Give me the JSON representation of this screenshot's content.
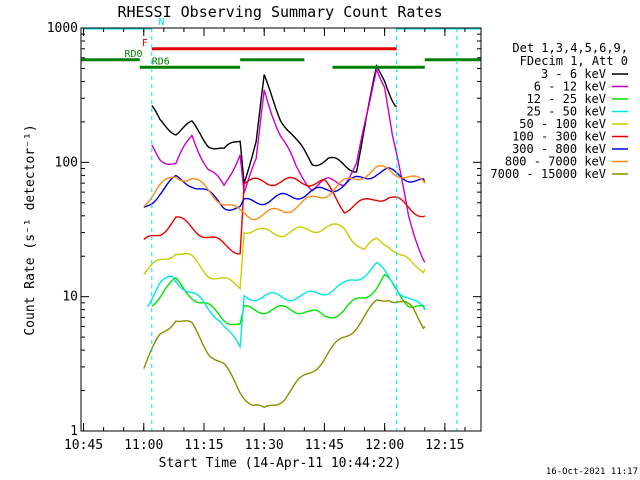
{
  "chart_data": {
    "type": "line",
    "title": "RHESSI Observing Summary Count Rates",
    "xlabel": "Start Time (14-Apr-11 10:44:22)",
    "ylabel": "Count Rate (s⁻¹ detector⁻¹)",
    "y_scale": "log",
    "ylim": [
      1,
      1000
    ],
    "xlim": [
      "10:44:22",
      "12:24:00"
    ],
    "x_ticks": [
      "10:45",
      "11:00",
      "11:15",
      "11:30",
      "11:45",
      "12:00",
      "12:15"
    ],
    "y_ticks": [
      "1",
      "10",
      "100",
      "1000"
    ],
    "legend_title": [
      "Det 1,3,4,5,6,9,",
      "FDecim 1, Att 0"
    ],
    "legend_position": "right",
    "timestamp": "16-Oct-2021 11:17",
    "series": [
      {
        "name": "3 - 6 keV",
        "color": "#000000",
        "x": [
          "11:02",
          "11:04",
          "11:08",
          "11:12",
          "11:16",
          "11:20",
          "11:24",
          "11:25",
          "11:28",
          "11:30",
          "11:34",
          "11:38",
          "11:42",
          "11:46",
          "11:50",
          "11:53",
          "11:56",
          "11:58",
          "12:00",
          "12:02",
          "12:03"
        ],
        "y": [
          250,
          200,
          170,
          190,
          140,
          120,
          150,
          75,
          140,
          420,
          220,
          140,
          100,
          105,
          95,
          90,
          250,
          500,
          420,
          300,
          260
        ]
      },
      {
        "name": "6 - 12 keV",
        "color": "#cc00cc",
        "x": [
          "11:02",
          "11:04",
          "11:08",
          "11:12",
          "11:16",
          "11:20",
          "11:24",
          "11:25",
          "11:28",
          "11:30",
          "11:34",
          "11:38",
          "11:42",
          "11:46",
          "11:50",
          "11:53",
          "11:56",
          "11:58",
          "12:00",
          "12:02",
          "12:06",
          "12:10"
        ],
        "y": [
          130,
          110,
          95,
          160,
          90,
          65,
          120,
          60,
          100,
          350,
          160,
          90,
          65,
          72,
          72,
          95,
          250,
          520,
          380,
          150,
          40,
          18
        ]
      },
      {
        "name": "12 - 25 keV",
        "color": "#00e600",
        "x": [
          "11:02",
          "11:05",
          "11:08",
          "11:11",
          "11:14",
          "11:17",
          "11:20",
          "11:24",
          "11:25",
          "11:30",
          "11:35",
          "11:40",
          "11:45",
          "11:50",
          "11:55",
          "11:58",
          "12:00",
          "12:03",
          "12:06",
          "12:10"
        ],
        "y": [
          9,
          11,
          13,
          11,
          9,
          8,
          7,
          6,
          8,
          8,
          8,
          8,
          7,
          8,
          10,
          12,
          14,
          11,
          9,
          8
        ]
      },
      {
        "name": "25 - 50 keV",
        "color": "#00e6e6",
        "x": [
          "11:01",
          "11:04",
          "11:07",
          "11:10",
          "11:13",
          "11:16",
          "11:19",
          "11:22",
          "11:24",
          "11:25",
          "11:30",
          "11:35",
          "11:40",
          "11:45",
          "11:50",
          "11:55",
          "11:58",
          "12:01",
          "12:04",
          "12:07",
          "12:10"
        ],
        "y": [
          9,
          12,
          14,
          12,
          10,
          8,
          7,
          5,
          4,
          10,
          10,
          10,
          10,
          11,
          12,
          15,
          17,
          14,
          11,
          9,
          8
        ]
      },
      {
        "name": "50 - 100 keV",
        "color": "#cccc00",
        "x": [
          "11:00",
          "11:04",
          "11:08",
          "11:12",
          "11:16",
          "11:20",
          "11:24",
          "11:25",
          "11:30",
          "11:35",
          "11:40",
          "11:45",
          "11:50",
          "11:55",
          "11:58",
          "12:01",
          "12:04",
          "12:07",
          "12:10"
        ],
        "y": [
          15,
          18,
          22,
          19,
          15,
          13,
          12,
          32,
          30,
          30,
          31,
          33,
          32,
          22,
          26,
          25,
          20,
          17,
          16
        ]
      },
      {
        "name": "100 - 300 keV",
        "color": "#e60000",
        "x": [
          "11:00",
          "11:04",
          "11:08",
          "11:12",
          "11:16",
          "11:20",
          "11:24",
          "11:25",
          "11:30",
          "11:35",
          "11:40",
          "11:45",
          "11:50",
          "11:55",
          "11:58",
          "12:01",
          "12:04",
          "12:07",
          "12:10"
        ],
        "y": [
          25,
          30,
          38,
          33,
          28,
          24,
          22,
          70,
          72,
          72,
          72,
          70,
          45,
          50,
          55,
          55,
          50,
          45,
          40
        ]
      },
      {
        "name": "300 - 800 keV",
        "color": "#0000e6",
        "x": [
          "11:00",
          "11:04",
          "11:08",
          "11:12",
          "11:16",
          "11:20",
          "11:24",
          "11:25",
          "11:30",
          "11:35",
          "11:40",
          "11:45",
          "11:50",
          "11:55",
          "11:58",
          "12:01",
          "12:04",
          "12:07",
          "12:10"
        ],
        "y": [
          45,
          60,
          75,
          70,
          58,
          48,
          45,
          50,
          52,
          55,
          58,
          62,
          68,
          78,
          84,
          85,
          80,
          75,
          70
        ]
      },
      {
        "name": "800 - 7000 keV",
        "color": "#ff8c1a",
        "x": [
          "11:00",
          "11:04",
          "11:08",
          "11:12",
          "11:16",
          "11:20",
          "11:24",
          "11:27",
          "11:30",
          "11:35",
          "11:40",
          "11:45",
          "11:50",
          "11:55",
          "11:58",
          "12:01",
          "12:04",
          "12:07",
          "12:10"
        ],
        "y": [
          50,
          65,
          80,
          75,
          62,
          50,
          42,
          40,
          41,
          44,
          50,
          58,
          70,
          82,
          88,
          88,
          82,
          75,
          70
        ]
      },
      {
        "name": "7000 - 15000 keV",
        "color": "#8c8c00",
        "x": [
          "11:00",
          "11:04",
          "11:08",
          "11:12",
          "11:16",
          "11:20",
          "11:24",
          "11:27",
          "11:30",
          "11:35",
          "11:40",
          "11:45",
          "11:50",
          "11:55",
          "11:58",
          "12:01",
          "12:04",
          "12:07",
          "12:10"
        ],
        "y": [
          3,
          5,
          7,
          6,
          4,
          3,
          2,
          1.6,
          1.4,
          1.8,
          2.5,
          3.5,
          5,
          7,
          9,
          10,
          9,
          8,
          6
        ]
      }
    ],
    "bars": [
      {
        "label": "N",
        "color": "#00e6e6",
        "y": 1000,
        "spans": [
          [
            "10:45",
            "11:02"
          ],
          [
            "12:03",
            "12:24"
          ]
        ]
      },
      {
        "label": "F",
        "color": "#e60000",
        "y": 700,
        "spans": [
          [
            "11:02",
            "12:03"
          ]
        ]
      },
      {
        "label": "RD0",
        "color": "#008000",
        "y": 580,
        "spans": [
          [
            "10:44",
            "10:59"
          ],
          [
            "11:24",
            "11:40"
          ],
          [
            "12:10",
            "12:24"
          ]
        ]
      },
      {
        "label": "RD6",
        "color": "#008000",
        "y": 510,
        "spans": [
          [
            "10:59",
            "11:24"
          ],
          [
            "11:47",
            "12:10"
          ]
        ]
      }
    ],
    "vlines": [
      "11:02",
      "12:03",
      "12:18"
    ]
  }
}
